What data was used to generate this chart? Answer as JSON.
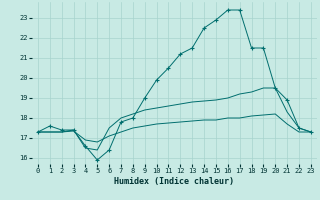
{
  "xlabel": "Humidex (Indice chaleur)",
  "bg_color": "#c8eae4",
  "grid_color": "#a8d4ce",
  "line_color": "#006e6e",
  "xlim": [
    -0.5,
    23.5
  ],
  "ylim": [
    15.7,
    23.8
  ],
  "yticks": [
    16,
    17,
    18,
    19,
    20,
    21,
    22,
    23
  ],
  "xticks": [
    0,
    1,
    2,
    3,
    4,
    5,
    6,
    7,
    8,
    9,
    10,
    11,
    12,
    13,
    14,
    15,
    16,
    17,
    18,
    19,
    20,
    21,
    22,
    23
  ],
  "series": [
    {
      "x": [
        0,
        1,
        2,
        3,
        4,
        5,
        6,
        7,
        8,
        9,
        10,
        11,
        12,
        13,
        14,
        15,
        16,
        17,
        18,
        19,
        20,
        21,
        22,
        23
      ],
      "y": [
        17.3,
        17.6,
        17.4,
        17.4,
        16.6,
        15.9,
        16.4,
        17.8,
        18.0,
        19.0,
        19.9,
        20.5,
        21.2,
        21.5,
        22.5,
        22.9,
        23.4,
        23.4,
        21.5,
        21.5,
        19.5,
        18.9,
        17.5,
        17.3
      ],
      "marker": "+"
    },
    {
      "x": [
        0,
        1,
        2,
        3,
        4,
        5,
        6,
        7,
        8,
        9,
        10,
        11,
        12,
        13,
        14,
        15,
        16,
        17,
        18,
        19,
        20,
        21,
        22,
        23
      ],
      "y": [
        17.3,
        17.3,
        17.3,
        17.4,
        16.5,
        16.4,
        17.5,
        18.0,
        18.2,
        18.4,
        18.5,
        18.6,
        18.7,
        18.8,
        18.85,
        18.9,
        19.0,
        19.2,
        19.3,
        19.5,
        19.5,
        18.3,
        17.5,
        17.3
      ],
      "marker": null
    },
    {
      "x": [
        0,
        1,
        2,
        3,
        4,
        5,
        6,
        7,
        8,
        9,
        10,
        11,
        12,
        13,
        14,
        15,
        16,
        17,
        18,
        19,
        20,
        21,
        22,
        23
      ],
      "y": [
        17.3,
        17.3,
        17.3,
        17.35,
        16.9,
        16.8,
        17.1,
        17.3,
        17.5,
        17.6,
        17.7,
        17.75,
        17.8,
        17.85,
        17.9,
        17.9,
        18.0,
        18.0,
        18.1,
        18.15,
        18.2,
        17.7,
        17.3,
        17.3
      ],
      "marker": null
    }
  ]
}
